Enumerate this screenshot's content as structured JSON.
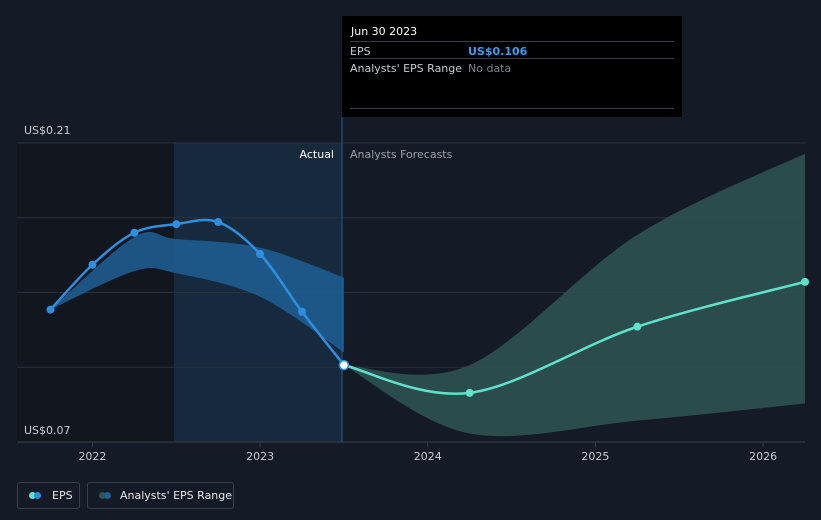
{
  "tooltip": {
    "date": "Jun 30 2023",
    "eps_label": "EPS",
    "eps_value": "US$0.106",
    "range_label": "Analysts' EPS Range",
    "range_value": "No data"
  },
  "labels": {
    "actual": "Actual",
    "forecast": "Analysts Forecasts"
  },
  "legend": {
    "eps": "EPS",
    "range": "Analysts' EPS Range"
  },
  "colors": {
    "background": "#151b26",
    "eps_actual": "#2d8fe0",
    "eps_forecast": "#5ee2cc",
    "range_actual": "#1f5f95",
    "range_forecast": "#2e5553",
    "grid": "#2a313c",
    "text": "#c9ccd1"
  },
  "chart_data": {
    "type": "line",
    "title": "",
    "xlabel": "",
    "ylabel": "",
    "ylim": [
      0.07,
      0.21
    ],
    "y_tick_labels": [
      "US$0.21",
      "US$0.07"
    ],
    "x_tick_labels": [
      "2022",
      "2023",
      "2024",
      "2025",
      "2026"
    ],
    "x_ticks": [
      2022.0,
      2023.0,
      2024.0,
      2025.0,
      2026.0
    ],
    "xlim": [
      2021.55,
      2026.25
    ],
    "divider_x": 2023.5,
    "highlight_start_x": 2022.5,
    "series": [
      {
        "name": "EPS",
        "kind": "actual",
        "x": [
          2021.75,
          2022.0,
          2022.25,
          2022.5,
          2022.75,
          2023.0,
          2023.25,
          2023.5
        ],
        "y": [
          0.132,
          0.153,
          0.168,
          0.172,
          0.173,
          0.158,
          0.131,
          0.106
        ]
      },
      {
        "name": "EPS",
        "kind": "forecast",
        "x": [
          2023.5,
          2024.25,
          2025.25,
          2026.25
        ],
        "y": [
          0.106,
          0.093,
          0.124,
          0.145
        ]
      }
    ],
    "ranges": [
      {
        "name": "Analysts' EPS Range",
        "kind": "actual",
        "x": [
          2021.75,
          2022.25,
          2022.5,
          2023.0,
          2023.5
        ],
        "low": [
          0.132,
          0.15,
          0.149,
          0.138,
          0.112
        ],
        "high": [
          0.132,
          0.166,
          0.165,
          0.161,
          0.147
        ]
      },
      {
        "name": "Analysts' EPS Range",
        "kind": "forecast",
        "x": [
          2023.5,
          2024.25,
          2025.25,
          2026.25
        ],
        "low": [
          0.106,
          0.074,
          0.08,
          0.088
        ],
        "high": [
          0.106,
          0.106,
          0.167,
          0.205
        ]
      }
    ]
  }
}
